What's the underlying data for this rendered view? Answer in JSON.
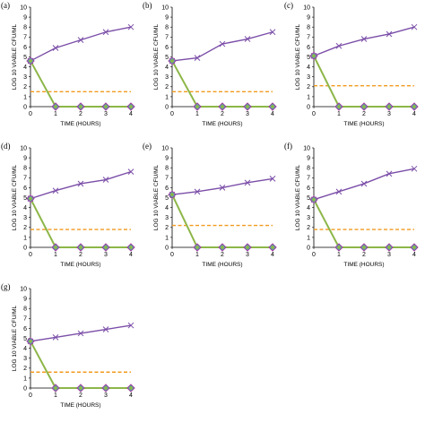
{
  "colors": {
    "growth": "#7B4EA8",
    "treatment": "#8DB648",
    "threshold": "#F29A1E",
    "marker_fill_a": "#3FA6C8",
    "marker_fill_b": "#8DB648",
    "marker_outline": "#A1429B",
    "axis": "#000000"
  },
  "chart_data": [
    {
      "type": "line",
      "panel": "(a)",
      "x": [
        0,
        1,
        2,
        3,
        4
      ],
      "growth": [
        4.6,
        5.9,
        6.7,
        7.5,
        8.0
      ],
      "treatment": [
        4.6,
        0,
        0,
        0,
        0
      ],
      "threshold": 1.5,
      "xlabel": "TIME (HOURS)",
      "ylabel": "LOG 10 VIABLE CFU/ML",
      "xticks": [
        "0",
        "1",
        "2",
        "3",
        "4"
      ],
      "yticks": [
        "0",
        "1",
        "2",
        "3",
        "4",
        "5",
        "6",
        "7",
        "8",
        "9",
        "10"
      ],
      "ylim": [
        0,
        10
      ],
      "xlim": [
        0,
        4
      ]
    },
    {
      "type": "line",
      "panel": "(b)",
      "x": [
        0,
        1,
        2,
        3,
        4
      ],
      "growth": [
        4.6,
        4.9,
        6.3,
        6.8,
        7.5
      ],
      "treatment": [
        4.6,
        0,
        0,
        0,
        0
      ],
      "threshold": 1.5,
      "xlabel": "TIME (HOURS)",
      "ylabel": "LOG 10 VIABLE CFU/ML",
      "xticks": [
        "0",
        "1",
        "2",
        "3",
        "4"
      ],
      "yticks": [
        "0",
        "1",
        "2",
        "3",
        "4",
        "5",
        "6",
        "7",
        "8",
        "9",
        "10"
      ],
      "ylim": [
        0,
        10
      ],
      "xlim": [
        0,
        4
      ]
    },
    {
      "type": "line",
      "panel": "(c)",
      "x": [
        0,
        1,
        2,
        3,
        4
      ],
      "growth": [
        5.1,
        6.1,
        6.8,
        7.3,
        8.0
      ],
      "treatment": [
        5.1,
        0,
        0,
        0,
        0
      ],
      "threshold": 2.1,
      "xlabel": "TIME (HOURS)",
      "ylabel": "LOG 10 VIABLE CFU/ML",
      "xticks": [
        "0",
        "1",
        "2",
        "3",
        "4"
      ],
      "yticks": [
        "0",
        "1",
        "2",
        "3",
        "4",
        "5",
        "6",
        "7",
        "8",
        "9",
        "10"
      ],
      "ylim": [
        0,
        10
      ],
      "xlim": [
        0,
        4
      ]
    },
    {
      "type": "line",
      "panel": "(d)",
      "x": [
        0,
        1,
        2,
        3,
        4
      ],
      "growth": [
        4.9,
        5.7,
        6.4,
        6.8,
        7.6
      ],
      "treatment": [
        4.9,
        0,
        0,
        0,
        0
      ],
      "threshold": 1.8,
      "xlabel": "TIME (HOURS)",
      "ylabel": "LOG 10 VIABLE CFU/ML",
      "xticks": [
        "0",
        "1",
        "2",
        "3",
        "4"
      ],
      "yticks": [
        "0",
        "1",
        "2",
        "3",
        "4",
        "5",
        "6",
        "7",
        "8",
        "9",
        "10"
      ],
      "ylim": [
        0,
        10
      ],
      "xlim": [
        0,
        4
      ]
    },
    {
      "type": "line",
      "panel": "(e)",
      "x": [
        0,
        1,
        2,
        3,
        4
      ],
      "growth": [
        5.3,
        5.6,
        6.0,
        6.5,
        6.9
      ],
      "treatment": [
        5.3,
        0,
        0,
        0,
        0
      ],
      "threshold": 2.2,
      "xlabel": "TIME (HOURS)",
      "ylabel": "LOG 10 VIABLE CFU/ML",
      "xticks": [
        "0",
        "1",
        "2",
        "3",
        "4"
      ],
      "yticks": [
        "0",
        "1",
        "2",
        "3",
        "4",
        "5",
        "6",
        "7",
        "8",
        "9",
        "10"
      ],
      "ylim": [
        0,
        10
      ],
      "xlim": [
        0,
        4
      ]
    },
    {
      "type": "line",
      "panel": "(f)",
      "x": [
        0,
        1,
        2,
        3,
        4
      ],
      "growth": [
        4.8,
        5.6,
        6.4,
        7.4,
        7.9
      ],
      "treatment": [
        4.8,
        0,
        0,
        0,
        0
      ],
      "threshold": 1.8,
      "xlabel": "TIME (HOURS)",
      "ylabel": "LOG 10 VIABLE CFU/ML",
      "xticks": [
        "0",
        "1",
        "2",
        "3",
        "4"
      ],
      "yticks": [
        "0",
        "1",
        "2",
        "3",
        "4",
        "5",
        "6",
        "7",
        "8",
        "9",
        "10"
      ],
      "ylim": [
        0,
        10
      ],
      "xlim": [
        0,
        4
      ]
    },
    {
      "type": "line",
      "panel": "(g)",
      "x": [
        0,
        1,
        2,
        3,
        4
      ],
      "growth": [
        4.7,
        5.1,
        5.5,
        5.9,
        6.3
      ],
      "treatment": [
        4.7,
        0,
        0,
        0,
        0
      ],
      "threshold": 1.6,
      "xlabel": "TIME (HOURS)",
      "ylabel": "LOG 10 VIABLE CFU/ML",
      "xticks": [
        "0",
        "1",
        "2",
        "3",
        "4"
      ],
      "yticks": [
        "0",
        "1",
        "2",
        "3",
        "4",
        "5",
        "6",
        "7",
        "8",
        "9",
        "10"
      ],
      "ylim": [
        0,
        10
      ],
      "xlim": [
        0,
        4
      ]
    }
  ]
}
